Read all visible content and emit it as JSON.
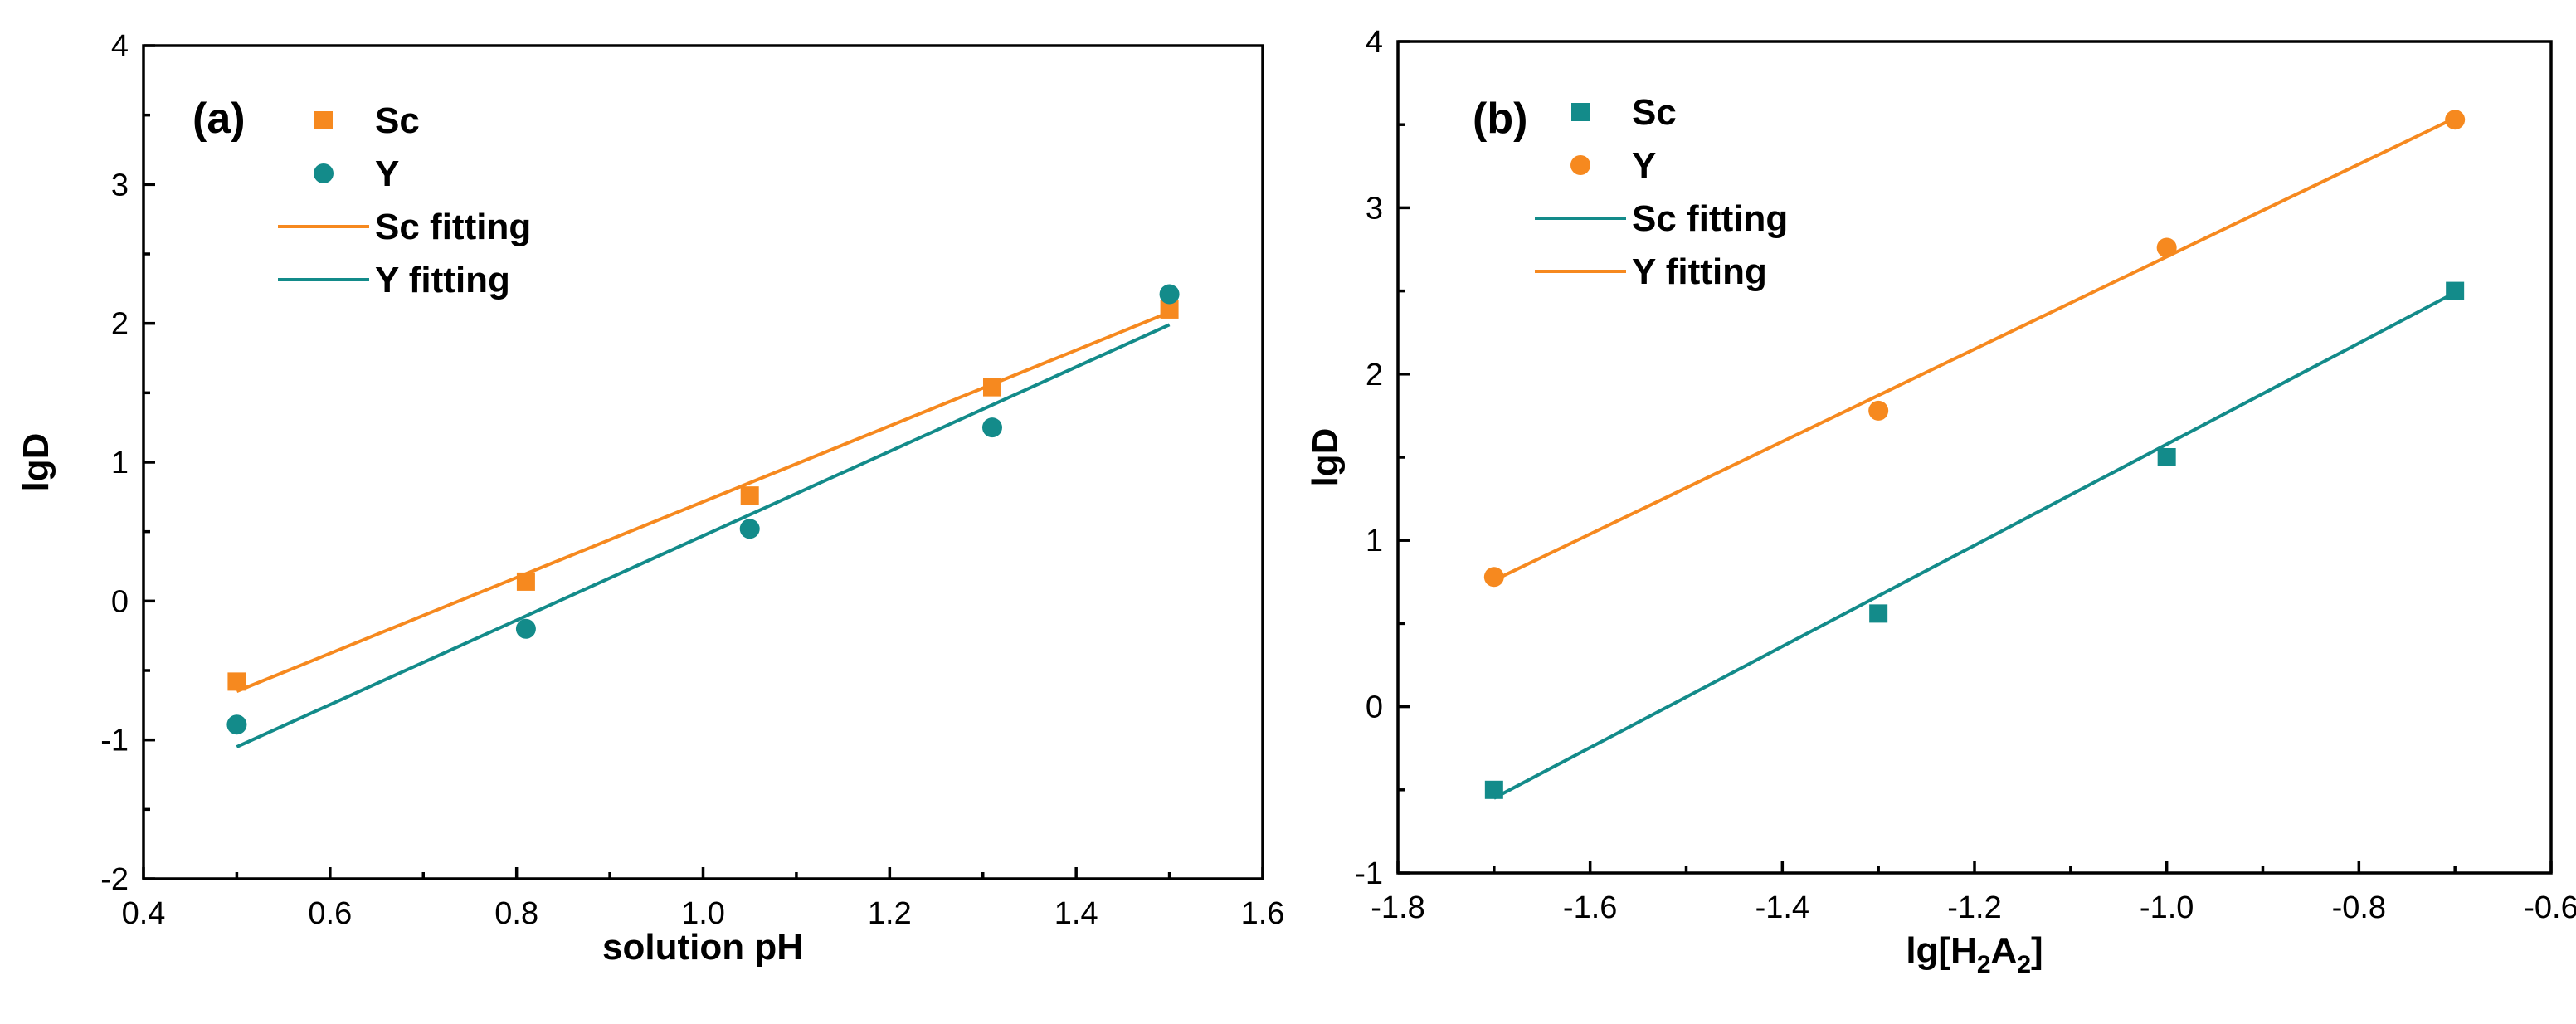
{
  "colors": {
    "orange": "#F6891F",
    "teal": "#138B8A"
  },
  "chart_data": [
    {
      "type": "scatter",
      "panel_label": "(a)",
      "xlabel": "solution pH",
      "ylabel": "lgD",
      "xlim": [
        0.4,
        1.6
      ],
      "ylim": [
        -2,
        4
      ],
      "xticks": [
        "0.4",
        "0.6",
        "0.8",
        "1.0",
        "1.2",
        "1.4",
        "1.6"
      ],
      "yticks": [
        "-2",
        "-1",
        "0",
        "1",
        "2",
        "3",
        "4"
      ],
      "legend_position": "top-left",
      "series": [
        {
          "name": "Sc",
          "kind": "points",
          "marker": "square",
          "color": "#F6891F",
          "x": [
            0.5,
            0.81,
            1.05,
            1.31,
            1.5
          ],
          "y": [
            -0.58,
            0.14,
            0.76,
            1.54,
            2.1
          ]
        },
        {
          "name": "Y",
          "kind": "points",
          "marker": "circle",
          "color": "#138B8A",
          "x": [
            0.5,
            0.81,
            1.05,
            1.31,
            1.5
          ],
          "y": [
            -0.89,
            -0.2,
            0.52,
            1.25,
            2.21
          ]
        },
        {
          "name": "Sc fitting",
          "kind": "line",
          "color": "#F6891F",
          "x": [
            0.5,
            1.5
          ],
          "y": [
            -0.65,
            2.08
          ]
        },
        {
          "name": "Y fitting",
          "kind": "line",
          "color": "#138B8A",
          "x": [
            0.5,
            1.5
          ],
          "y": [
            -1.05,
            1.99
          ]
        }
      ]
    },
    {
      "type": "scatter",
      "panel_label": "(b)",
      "xlabel": "lg[H2A2]",
      "xlabel_parts": {
        "pre": "lg[H",
        "sub1": "2",
        "mid": "A",
        "sub2": "2",
        "post": "]"
      },
      "ylabel": "lgD",
      "xlim": [
        -1.8,
        -0.6
      ],
      "ylim": [
        -1,
        4
      ],
      "xticks": [
        "-1.8",
        "-1.6",
        "-1.4",
        "-1.2",
        "-1.0",
        "-0.8",
        "-0.6"
      ],
      "yticks": [
        "-1",
        "0",
        "1",
        "2",
        "3",
        "4"
      ],
      "legend_position": "top-left",
      "series": [
        {
          "name": "Sc",
          "kind": "points",
          "marker": "square",
          "color": "#138B8A",
          "x": [
            -1.7,
            -1.3,
            -1.0,
            -0.7
          ],
          "y": [
            -0.5,
            0.56,
            1.5,
            2.5
          ]
        },
        {
          "name": "Y",
          "kind": "points",
          "marker": "circle",
          "color": "#F6891F",
          "x": [
            -1.7,
            -1.3,
            -1.0,
            -0.7
          ],
          "y": [
            0.78,
            1.78,
            2.76,
            3.53
          ]
        },
        {
          "name": "Sc fitting",
          "kind": "line",
          "color": "#138B8A",
          "x": [
            -1.7,
            -0.7
          ],
          "y": [
            -0.55,
            2.49
          ]
        },
        {
          "name": "Y fitting",
          "kind": "line",
          "color": "#F6891F",
          "x": [
            -1.7,
            -0.7
          ],
          "y": [
            0.76,
            3.54
          ]
        }
      ]
    }
  ]
}
